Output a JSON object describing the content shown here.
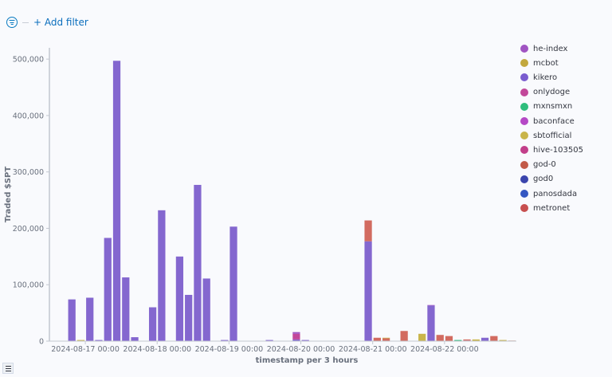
{
  "filter": {
    "add_label": "+ Add filter"
  },
  "chart_data": {
    "type": "bar",
    "stacked": true,
    "ylabel": "Traded $SPT",
    "xlabel": "timestamp per 3 hours",
    "ylim": [
      0,
      520000
    ],
    "yticks": [
      0,
      100000,
      200000,
      300000,
      400000,
      500000
    ],
    "ytick_labels": [
      "0",
      "100,000",
      "200,000",
      "300,000",
      "400,000",
      "500,000"
    ],
    "xlim": [
      0,
      52
    ],
    "xticks": [
      {
        "pos": 4,
        "label": "2024-08-17 00:00"
      },
      {
        "pos": 12,
        "label": "2024-08-18 00:00"
      },
      {
        "pos": 20,
        "label": "2024-08-19 00:00"
      },
      {
        "pos": 28,
        "label": "2024-08-20 00:00"
      },
      {
        "pos": 36,
        "label": "2024-08-21 00:00"
      },
      {
        "pos": 44,
        "label": "2024-08-22 00:00"
      }
    ],
    "legend": [
      {
        "name": "he-index",
        "color": "#a054c2"
      },
      {
        "name": "mcbot",
        "color": "#c2a83e"
      },
      {
        "name": "kikero",
        "color": "#7a5ccf"
      },
      {
        "name": "onlydoge",
        "color": "#c2489a"
      },
      {
        "name": "mxnsmxn",
        "color": "#2fbd7c"
      },
      {
        "name": "baconface",
        "color": "#b548c6"
      },
      {
        "name": "sbtofficial",
        "color": "#c9b54a"
      },
      {
        "name": "hive-103505",
        "color": "#c23f8a"
      },
      {
        "name": "god-0",
        "color": "#c25a48"
      },
      {
        "name": "god0",
        "color": "#3b45ad"
      },
      {
        "name": "panosdada",
        "color": "#3457c2"
      },
      {
        "name": "metronet",
        "color": "#c74f4f"
      }
    ],
    "series": [
      {
        "name": "kikero",
        "color": "#8467cf",
        "points": [
          [
            2,
            74000
          ],
          [
            4,
            77000
          ],
          [
            5,
            2000
          ],
          [
            6,
            183000
          ],
          [
            7,
            497000
          ],
          [
            8,
            113000
          ],
          [
            9,
            7000
          ],
          [
            11,
            60000
          ],
          [
            12,
            232000
          ],
          [
            14,
            150000
          ],
          [
            15,
            82000
          ],
          [
            16,
            277000
          ],
          [
            17,
            111000
          ],
          [
            19,
            2000
          ],
          [
            20,
            203000
          ],
          [
            24,
            2000
          ],
          [
            27,
            3000
          ],
          [
            28,
            2000
          ],
          [
            35,
            177000
          ],
          [
            42,
            63000
          ],
          [
            46,
            1000
          ],
          [
            48,
            6000
          ]
        ]
      },
      {
        "name": "metronet",
        "color": "#d26b60",
        "points": [
          [
            35,
            37000
          ],
          [
            36,
            6000
          ],
          [
            37,
            5000
          ],
          [
            39,
            18000
          ],
          [
            43,
            11000
          ],
          [
            44,
            9000
          ],
          [
            46,
            2000
          ],
          [
            49,
            9000
          ]
        ]
      },
      {
        "name": "onlydoge",
        "color": "#c2489a",
        "points": [
          [
            27,
            10000
          ]
        ]
      },
      {
        "name": "he-index",
        "color": "#a054c2",
        "points": [
          [
            27,
            3000
          ],
          [
            42,
            1000
          ]
        ]
      },
      {
        "name": "mcbot",
        "color": "#c9b54a",
        "points": [
          [
            3,
            2000
          ],
          [
            37,
            1000
          ],
          [
            41,
            13000
          ],
          [
            47,
            3000
          ],
          [
            50,
            2000
          ]
        ]
      },
      {
        "name": "mxnsmxn",
        "color": "#2fbd7c",
        "points": [
          [
            45,
            2000
          ]
        ]
      },
      {
        "name": "god-0",
        "color": "#c97a5c",
        "points": [
          [
            51,
            1000
          ]
        ]
      }
    ]
  }
}
